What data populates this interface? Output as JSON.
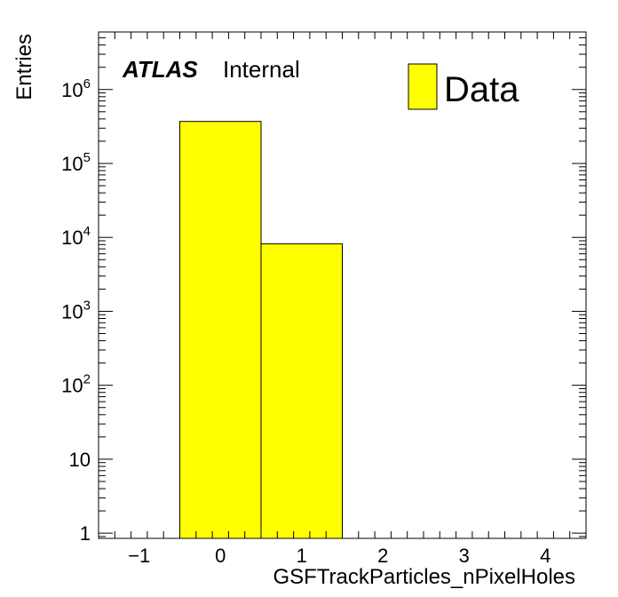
{
  "chart_data": {
    "type": "bar",
    "x_bin_edges": [
      -0.5,
      0.5,
      1.5
    ],
    "values": [
      370000,
      8200
    ],
    "xlabel": "GSFTrackParticles_nPixelHoles",
    "ylabel": "Entries",
    "xlim": [
      -1.5,
      4.5
    ],
    "ylim": [
      0.85,
      6000000
    ],
    "yscale": "log",
    "x_tick_labels": [
      "−1",
      "0",
      "1",
      "2",
      "3",
      "4"
    ],
    "x_tick_values": [
      -1,
      0,
      1,
      2,
      3,
      4
    ],
    "y_tick_values": [
      1,
      10,
      100,
      1000,
      10000,
      100000,
      1000000
    ],
    "y_tick_labels": [
      {
        "base": "1",
        "exp": ""
      },
      {
        "base": "10",
        "exp": ""
      },
      {
        "base": "10",
        "exp": "2"
      },
      {
        "base": "10",
        "exp": "3"
      },
      {
        "base": "10",
        "exp": "4"
      },
      {
        "base": "10",
        "exp": "5"
      },
      {
        "base": "10",
        "exp": "6"
      }
    ],
    "bar_color": "#ffff00",
    "grid": false,
    "legend": {
      "label": "Data",
      "placement": "top-right"
    },
    "label_text": {
      "atlas": "ATLAS",
      "status": "Internal"
    }
  }
}
